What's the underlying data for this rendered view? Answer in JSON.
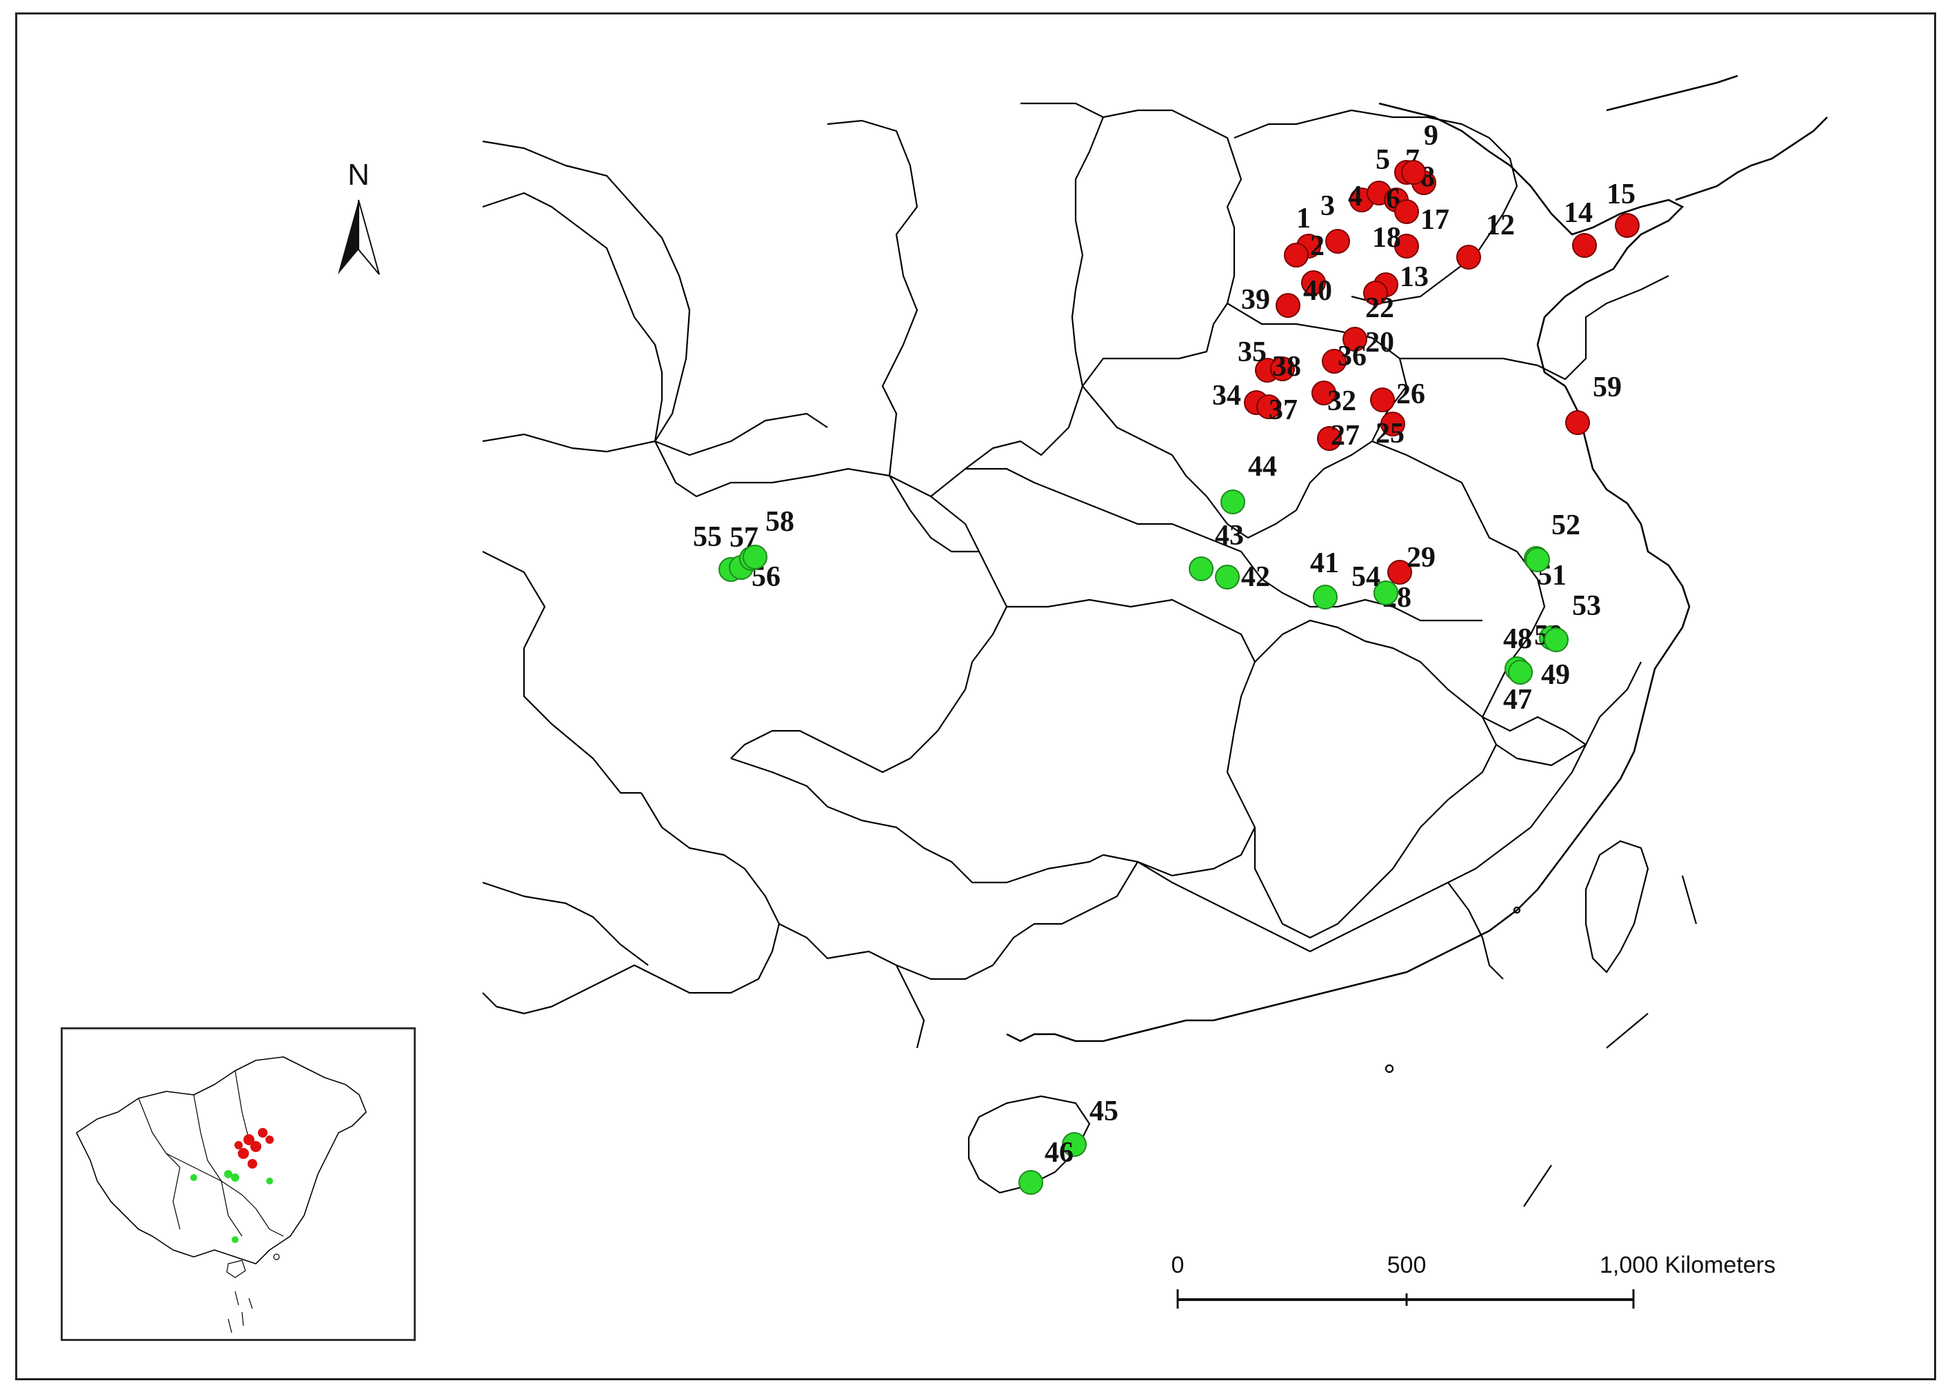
{
  "north_arrow": {
    "letter": "N"
  },
  "scale_bar": {
    "ticks": [
      {
        "value": "0"
      },
      {
        "value": "500"
      },
      {
        "value": "1,000 Kilometers"
      }
    ]
  },
  "colors": {
    "group_red": "#e01010",
    "group_green": "#2edc2e",
    "boundary": "#000000"
  },
  "sites_red": [
    {
      "label": "1"
    },
    {
      "label": "2"
    },
    {
      "label": "3"
    },
    {
      "label": "4"
    },
    {
      "label": "5"
    },
    {
      "label": "6"
    },
    {
      "label": "7"
    },
    {
      "label": "8"
    },
    {
      "label": "9"
    },
    {
      "label": "12"
    },
    {
      "label": "13"
    },
    {
      "label": "14"
    },
    {
      "label": "15"
    },
    {
      "label": "17"
    },
    {
      "label": "18"
    },
    {
      "label": "20"
    },
    {
      "label": "22"
    },
    {
      "label": "25"
    },
    {
      "label": "26"
    },
    {
      "label": "27"
    },
    {
      "label": "28"
    },
    {
      "label": "29"
    },
    {
      "label": "32"
    },
    {
      "label": "34"
    },
    {
      "label": "35"
    },
    {
      "label": "36"
    },
    {
      "label": "37"
    },
    {
      "label": "38"
    },
    {
      "label": "39"
    },
    {
      "label": "40"
    },
    {
      "label": "59"
    }
  ],
  "sites_green": [
    {
      "label": "41"
    },
    {
      "label": "42"
    },
    {
      "label": "43"
    },
    {
      "label": "44"
    },
    {
      "label": "45"
    },
    {
      "label": "46"
    },
    {
      "label": "47"
    },
    {
      "label": "48"
    },
    {
      "label": "49"
    },
    {
      "label": "50"
    },
    {
      "label": "51"
    },
    {
      "label": "52"
    },
    {
      "label": "53"
    },
    {
      "label": "54"
    },
    {
      "label": "55"
    },
    {
      "label": "56"
    },
    {
      "label": "57"
    },
    {
      "label": "58"
    }
  ]
}
